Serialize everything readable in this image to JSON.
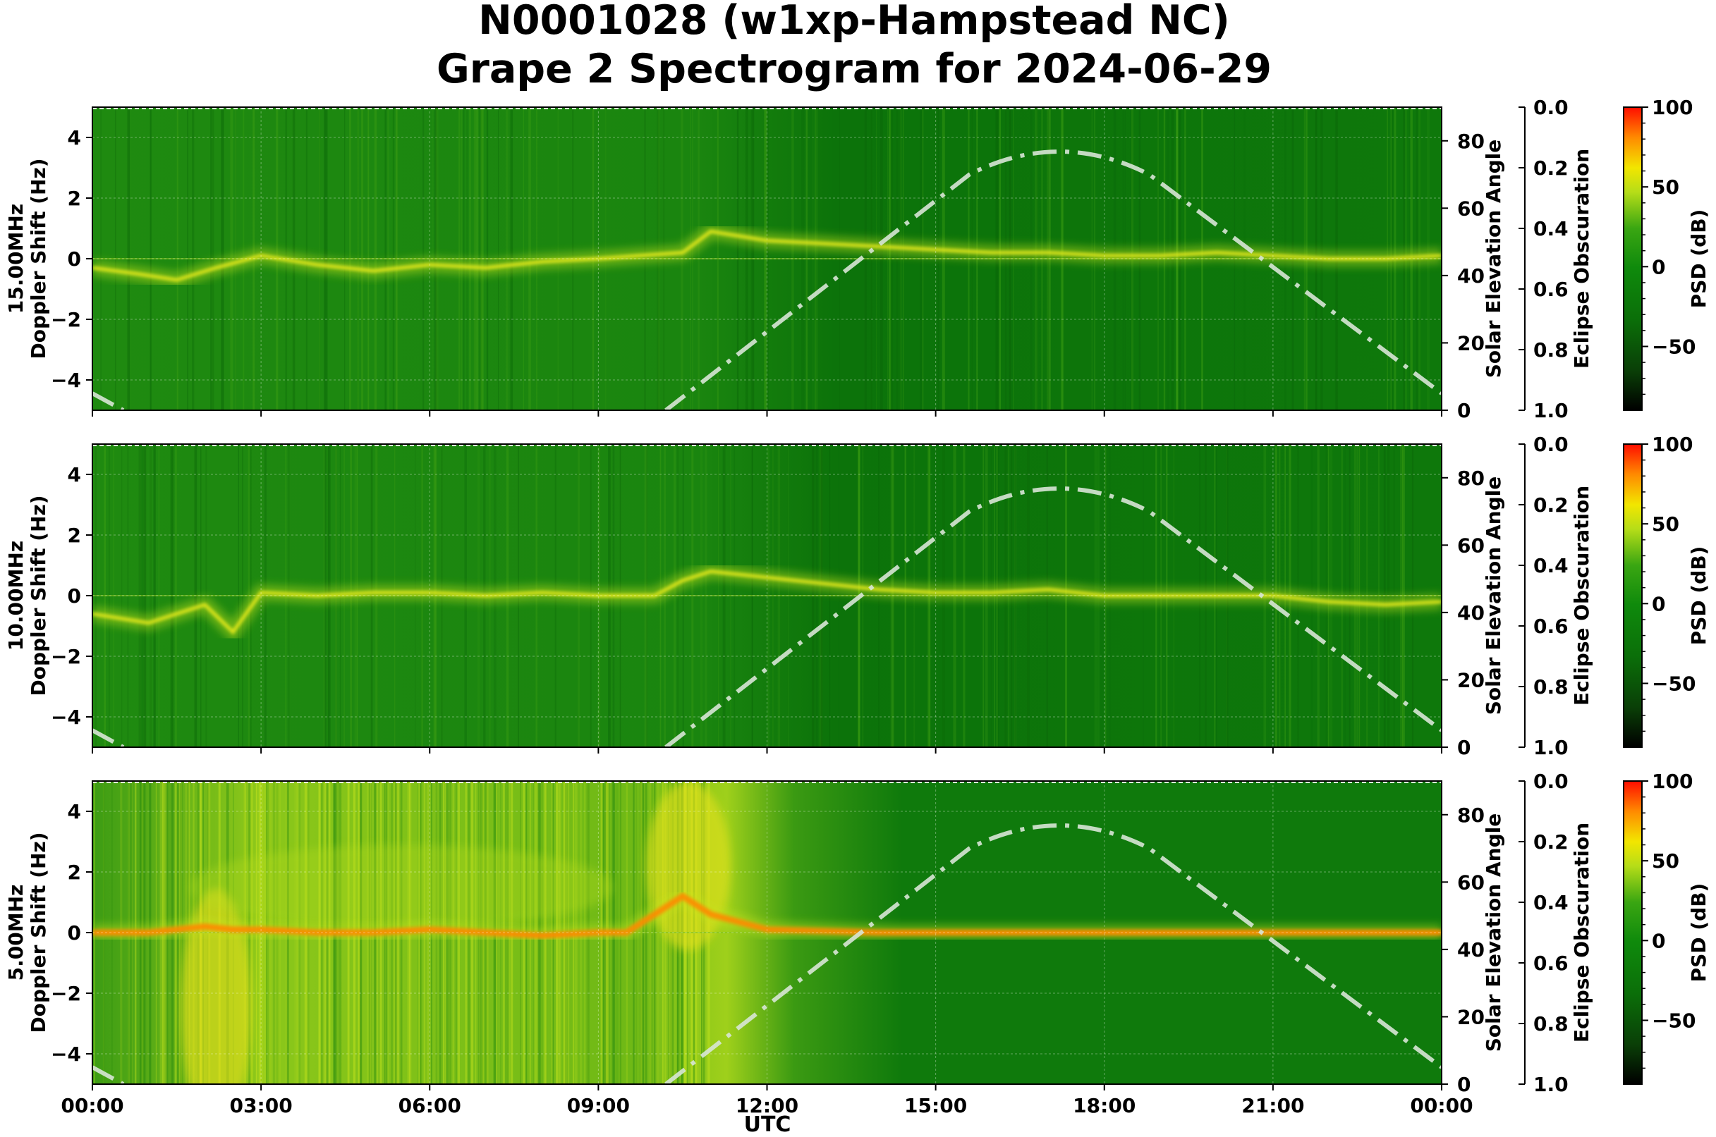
{
  "chart_data": {
    "type": "heatmap",
    "title_line1": "N0001028 (w1xp-Hampstead NC)",
    "title_line2": "Grape 2 Spectrogram for 2024-06-29",
    "xlabel": "UTC",
    "x_ticks": [
      "00:00",
      "03:00",
      "06:00",
      "09:00",
      "12:00",
      "15:00",
      "18:00",
      "21:00",
      "00:00"
    ],
    "x_range_hours": [
      0,
      24
    ],
    "ylabel": "Doppler Shift (Hz)",
    "y_ticks": [
      4,
      2,
      0,
      -2,
      -4
    ],
    "ylim": [
      -5,
      5
    ],
    "right_ylabel": "Solar Elevation Angle",
    "right_ticks": [
      80,
      60,
      40,
      20,
      0
    ],
    "right_ylim": [
      0,
      90
    ],
    "eclipse_label": "Eclipse Obscuration",
    "eclipse_ticks": [
      "0.0",
      "0.2",
      "0.4",
      "0.6",
      "0.8",
      "1.0"
    ],
    "colorbar_label": "PSD (dB)",
    "colorbar_ticks": [
      {
        "label": "100",
        "value": 100
      },
      {
        "label": "50",
        "value": 50
      },
      {
        "label": "0",
        "value": 0
      },
      {
        "label": "−50",
        "value": -50
      }
    ],
    "colorbar_range": [
      -90,
      100
    ],
    "colors": {
      "background_green": "#0f7a0c",
      "cmap": [
        "#000000",
        "#0a4a08",
        "#0e7d0b",
        "#2f9a10",
        "#c8e41a",
        "#ffd000",
        "#ff1a00"
      ],
      "elevation_line": "#d8e6d6"
    },
    "solar_elevation": {
      "hours": [
        0,
        0.5,
        10.2,
        17.2,
        24
      ],
      "degrees": [
        5,
        0,
        0,
        79,
        5
      ]
    },
    "panels": [
      {
        "freq_label": "15.00MHz",
        "trace_hours": [
          0,
          0.8,
          1.5,
          2.2,
          3,
          4,
          5,
          6,
          7,
          8,
          9,
          10.5,
          11,
          12,
          13,
          14,
          15,
          16,
          17,
          18,
          19,
          20,
          21,
          22,
          23,
          24
        ],
        "trace_doppler": [
          -0.3,
          -0.5,
          -0.7,
          -0.3,
          0.1,
          -0.2,
          -0.4,
          -0.2,
          -0.3,
          -0.1,
          0,
          0.2,
          0.9,
          0.6,
          0.5,
          0.4,
          0.3,
          0.2,
          0.2,
          0.1,
          0.1,
          0.2,
          0.1,
          0,
          0,
          0.1
        ]
      },
      {
        "freq_label": "10.00MHz",
        "trace_hours": [
          0,
          1,
          2,
          2.5,
          3,
          4,
          5,
          6,
          7,
          8,
          9,
          10,
          10.5,
          11,
          12,
          13,
          14,
          15,
          16,
          17,
          18,
          19,
          20,
          21,
          22,
          23,
          24
        ],
        "trace_doppler": [
          -0.6,
          -0.9,
          -0.3,
          -1.2,
          0.1,
          0,
          0.1,
          0.1,
          0,
          0.1,
          0,
          0,
          0.5,
          0.8,
          0.6,
          0.4,
          0.2,
          0.1,
          0.1,
          0.2,
          0,
          0,
          0,
          0,
          -0.2,
          -0.3,
          -0.2
        ]
      },
      {
        "freq_label": "5.00MHz",
        "trace_hours": [
          0,
          1,
          2,
          2.5,
          3,
          4,
          5,
          6,
          7,
          8,
          9,
          9.5,
          10,
          10.5,
          11,
          12,
          14,
          16,
          18,
          20,
          22,
          24
        ],
        "trace_doppler": [
          0,
          0,
          0.2,
          0.1,
          0.1,
          0,
          0,
          0.1,
          0,
          -0.1,
          0,
          0,
          0.6,
          1.2,
          0.6,
          0.1,
          0,
          0,
          0,
          0,
          0,
          0
        ]
      }
    ]
  }
}
